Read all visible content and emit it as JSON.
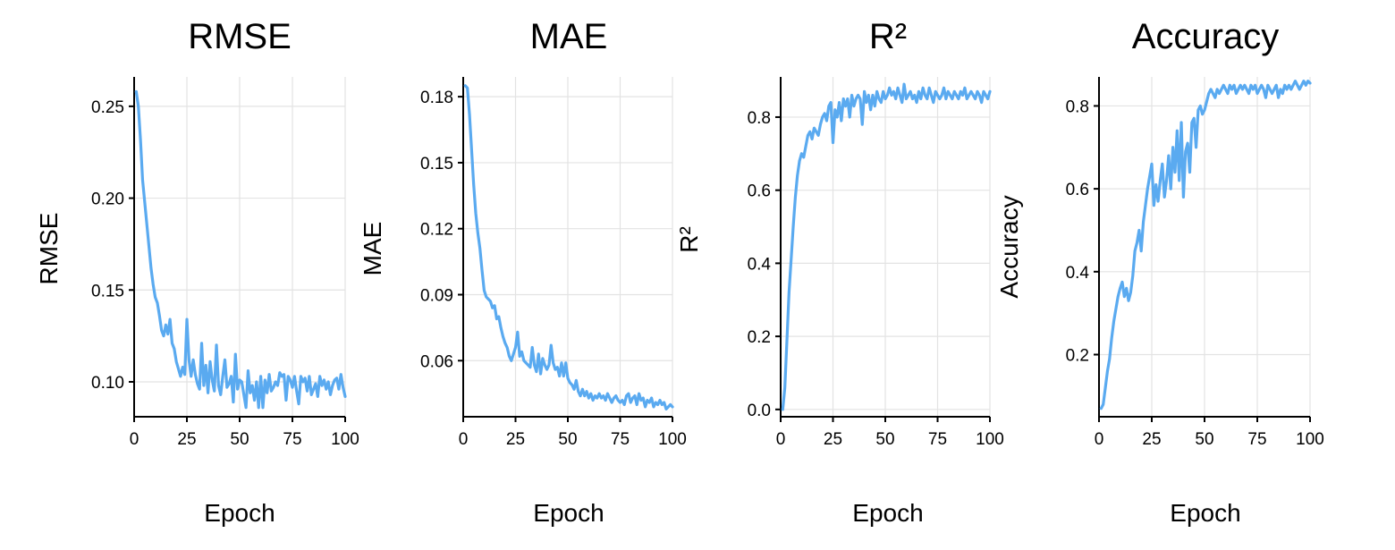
{
  "style": {
    "series_color": "#5aaaf0",
    "grid": true
  },
  "chart_data": [
    {
      "type": "line",
      "title": "RMSE",
      "xlabel": "Epoch",
      "ylabel": "RMSE",
      "xlim": [
        0,
        100
      ],
      "ylim": [
        0.081,
        0.266
      ],
      "xticks": [
        0,
        25,
        50,
        75,
        100
      ],
      "yticks": [
        0.1,
        0.15,
        0.2,
        0.25
      ],
      "ytick_labels": [
        "0.10",
        "0.15",
        "0.20",
        "0.25"
      ],
      "series": [
        {
          "x": [
            1,
            2,
            3,
            4,
            5,
            6,
            7,
            8,
            9,
            10,
            11,
            12,
            13,
            14,
            15,
            16,
            17,
            18,
            19,
            20,
            21,
            22,
            23,
            24,
            25,
            26,
            27,
            28,
            29,
            30,
            31,
            32,
            33,
            34,
            35,
            36,
            37,
            38,
            39,
            40,
            41,
            42,
            43,
            44,
            45,
            46,
            47,
            48,
            49,
            50,
            51,
            52,
            53,
            54,
            55,
            56,
            57,
            58,
            59,
            60,
            61,
            62,
            63,
            64,
            65,
            66,
            67,
            68,
            69,
            70,
            71,
            72,
            73,
            74,
            75,
            76,
            77,
            78,
            79,
            80,
            81,
            82,
            83,
            84,
            85,
            86,
            87,
            88,
            89,
            90,
            91,
            92,
            93,
            94,
            95,
            96,
            97,
            98,
            99,
            100
          ],
          "values": [
            0.258,
            0.25,
            0.232,
            0.21,
            0.198,
            0.186,
            0.174,
            0.162,
            0.153,
            0.146,
            0.143,
            0.136,
            0.128,
            0.125,
            0.131,
            0.126,
            0.134,
            0.121,
            0.118,
            0.111,
            0.107,
            0.103,
            0.108,
            0.104,
            0.134,
            0.112,
            0.103,
            0.112,
            0.104,
            0.099,
            0.096,
            0.121,
            0.098,
            0.109,
            0.094,
            0.111,
            0.101,
            0.095,
            0.12,
            0.098,
            0.093,
            0.103,
            0.112,
            0.097,
            0.099,
            0.103,
            0.089,
            0.115,
            0.096,
            0.101,
            0.1,
            0.093,
            0.086,
            0.106,
            0.094,
            0.098,
            0.09,
            0.1,
            0.086,
            0.103,
            0.086,
            0.101,
            0.094,
            0.104,
            0.095,
            0.097,
            0.1,
            0.098,
            0.105,
            0.103,
            0.104,
            0.09,
            0.103,
            0.101,
            0.097,
            0.103,
            0.095,
            0.088,
            0.103,
            0.1,
            0.102,
            0.095,
            0.103,
            0.093,
            0.096,
            0.099,
            0.092,
            0.103,
            0.098,
            0.101,
            0.096,
            0.1,
            0.093,
            0.098,
            0.101,
            0.102,
            0.096,
            0.104,
            0.097,
            0.092
          ]
        }
      ]
    },
    {
      "type": "line",
      "title": "MAE",
      "xlabel": "Epoch",
      "ylabel": "MAE",
      "xlim": [
        0,
        100
      ],
      "ylim": [
        0.0345,
        0.189
      ],
      "xticks": [
        0,
        25,
        50,
        75,
        100
      ],
      "yticks": [
        0.06,
        0.09,
        0.12,
        0.15,
        0.18
      ],
      "ytick_labels": [
        "0.06",
        "0.09",
        "0.12",
        "0.15",
        "0.18"
      ],
      "series": [
        {
          "x": [
            1,
            2,
            3,
            4,
            5,
            6,
            7,
            8,
            9,
            10,
            11,
            12,
            13,
            14,
            15,
            16,
            17,
            18,
            19,
            20,
            21,
            22,
            23,
            24,
            25,
            26,
            27,
            28,
            29,
            30,
            31,
            32,
            33,
            34,
            35,
            36,
            37,
            38,
            39,
            40,
            41,
            42,
            43,
            44,
            45,
            46,
            47,
            48,
            49,
            50,
            51,
            52,
            53,
            54,
            55,
            56,
            57,
            58,
            59,
            60,
            61,
            62,
            63,
            64,
            65,
            66,
            67,
            68,
            69,
            70,
            71,
            72,
            73,
            74,
            75,
            76,
            77,
            78,
            79,
            80,
            81,
            82,
            83,
            84,
            85,
            86,
            87,
            88,
            89,
            90,
            91,
            92,
            93,
            94,
            95,
            96,
            97,
            98,
            99,
            100
          ],
          "values": [
            0.185,
            0.184,
            0.172,
            0.156,
            0.14,
            0.127,
            0.118,
            0.111,
            0.101,
            0.092,
            0.089,
            0.088,
            0.087,
            0.084,
            0.085,
            0.079,
            0.08,
            0.075,
            0.071,
            0.068,
            0.066,
            0.062,
            0.06,
            0.063,
            0.066,
            0.073,
            0.062,
            0.064,
            0.06,
            0.059,
            0.058,
            0.057,
            0.066,
            0.058,
            0.055,
            0.063,
            0.054,
            0.061,
            0.058,
            0.056,
            0.058,
            0.067,
            0.059,
            0.056,
            0.057,
            0.053,
            0.059,
            0.053,
            0.059,
            0.052,
            0.05,
            0.049,
            0.047,
            0.051,
            0.046,
            0.044,
            0.047,
            0.044,
            0.046,
            0.043,
            0.045,
            0.042,
            0.044,
            0.043,
            0.045,
            0.043,
            0.044,
            0.042,
            0.045,
            0.043,
            0.041,
            0.043,
            0.044,
            0.042,
            0.041,
            0.042,
            0.04,
            0.044,
            0.045,
            0.041,
            0.043,
            0.044,
            0.04,
            0.045,
            0.042,
            0.043,
            0.039,
            0.042,
            0.041,
            0.043,
            0.039,
            0.041,
            0.04,
            0.042,
            0.04,
            0.041,
            0.038,
            0.039,
            0.04,
            0.039
          ]
        }
      ]
    },
    {
      "type": "line",
      "title": "R²",
      "xlabel": "Epoch",
      "ylabel": "R²",
      "xlim": [
        0,
        100
      ],
      "ylim": [
        -0.02,
        0.91
      ],
      "xticks": [
        0,
        25,
        50,
        75,
        100
      ],
      "yticks": [
        0.0,
        0.2,
        0.4,
        0.6,
        0.8
      ],
      "ytick_labels": [
        "0.0",
        "0.2",
        "0.4",
        "0.6",
        "0.8"
      ],
      "series": [
        {
          "x": [
            1,
            2,
            3,
            4,
            5,
            6,
            7,
            8,
            9,
            10,
            11,
            12,
            13,
            14,
            15,
            16,
            17,
            18,
            19,
            20,
            21,
            22,
            23,
            24,
            25,
            26,
            27,
            28,
            29,
            30,
            31,
            32,
            33,
            34,
            35,
            36,
            37,
            38,
            39,
            40,
            41,
            42,
            43,
            44,
            45,
            46,
            47,
            48,
            49,
            50,
            51,
            52,
            53,
            54,
            55,
            56,
            57,
            58,
            59,
            60,
            61,
            62,
            63,
            64,
            65,
            66,
            67,
            68,
            69,
            70,
            71,
            72,
            73,
            74,
            75,
            76,
            77,
            78,
            79,
            80,
            81,
            82,
            83,
            84,
            85,
            86,
            87,
            88,
            89,
            90,
            91,
            92,
            93,
            94,
            95,
            96,
            97,
            98,
            99,
            100
          ],
          "values": [
            0.0,
            0.06,
            0.19,
            0.32,
            0.41,
            0.5,
            0.58,
            0.64,
            0.68,
            0.7,
            0.69,
            0.72,
            0.75,
            0.76,
            0.74,
            0.77,
            0.76,
            0.75,
            0.78,
            0.8,
            0.81,
            0.79,
            0.83,
            0.84,
            0.73,
            0.82,
            0.8,
            0.84,
            0.79,
            0.85,
            0.83,
            0.85,
            0.8,
            0.86,
            0.83,
            0.85,
            0.86,
            0.85,
            0.78,
            0.87,
            0.84,
            0.86,
            0.82,
            0.86,
            0.83,
            0.87,
            0.85,
            0.84,
            0.87,
            0.85,
            0.86,
            0.88,
            0.86,
            0.87,
            0.85,
            0.88,
            0.86,
            0.84,
            0.89,
            0.85,
            0.86,
            0.87,
            0.85,
            0.86,
            0.84,
            0.87,
            0.85,
            0.88,
            0.86,
            0.85,
            0.88,
            0.86,
            0.84,
            0.87,
            0.86,
            0.85,
            0.86,
            0.88,
            0.85,
            0.87,
            0.86,
            0.85,
            0.87,
            0.86,
            0.85,
            0.87,
            0.86,
            0.88,
            0.85,
            0.86,
            0.87,
            0.86,
            0.85,
            0.87,
            0.86,
            0.84,
            0.87,
            0.86,
            0.85,
            0.87
          ]
        }
      ]
    },
    {
      "type": "line",
      "title": "Accuracy",
      "xlabel": "Epoch",
      "ylabel": "Accuracy",
      "xlim": [
        0,
        100
      ],
      "ylim": [
        0.05,
        0.87
      ],
      "xticks": [
        0,
        25,
        50,
        75,
        100
      ],
      "yticks": [
        0.2,
        0.4,
        0.6,
        0.8
      ],
      "ytick_labels": [
        "0.2",
        "0.4",
        "0.6",
        "0.8"
      ],
      "series": [
        {
          "x": [
            1,
            2,
            3,
            4,
            5,
            6,
            7,
            8,
            9,
            10,
            11,
            12,
            13,
            14,
            15,
            16,
            17,
            18,
            19,
            20,
            21,
            22,
            23,
            24,
            25,
            26,
            27,
            28,
            29,
            30,
            31,
            32,
            33,
            34,
            35,
            36,
            37,
            38,
            39,
            40,
            41,
            42,
            43,
            44,
            45,
            46,
            47,
            48,
            49,
            50,
            51,
            52,
            53,
            54,
            55,
            56,
            57,
            58,
            59,
            60,
            61,
            62,
            63,
            64,
            65,
            66,
            67,
            68,
            69,
            70,
            71,
            72,
            73,
            74,
            75,
            76,
            77,
            78,
            79,
            80,
            81,
            82,
            83,
            84,
            85,
            86,
            87,
            88,
            89,
            90,
            91,
            92,
            93,
            94,
            95,
            96,
            97,
            98,
            99,
            100
          ],
          "values": [
            0.07,
            0.08,
            0.12,
            0.16,
            0.19,
            0.24,
            0.28,
            0.31,
            0.34,
            0.36,
            0.375,
            0.34,
            0.36,
            0.33,
            0.35,
            0.39,
            0.45,
            0.47,
            0.5,
            0.45,
            0.52,
            0.56,
            0.6,
            0.63,
            0.66,
            0.56,
            0.61,
            0.57,
            0.62,
            0.66,
            0.58,
            0.62,
            0.68,
            0.6,
            0.7,
            0.64,
            0.74,
            0.62,
            0.76,
            0.58,
            0.69,
            0.71,
            0.64,
            0.76,
            0.77,
            0.7,
            0.79,
            0.8,
            0.78,
            0.79,
            0.81,
            0.83,
            0.84,
            0.83,
            0.82,
            0.84,
            0.83,
            0.84,
            0.85,
            0.84,
            0.83,
            0.85,
            0.84,
            0.85,
            0.83,
            0.84,
            0.85,
            0.84,
            0.85,
            0.84,
            0.83,
            0.85,
            0.84,
            0.85,
            0.83,
            0.84,
            0.85,
            0.84,
            0.82,
            0.85,
            0.84,
            0.83,
            0.84,
            0.85,
            0.82,
            0.84,
            0.83,
            0.85,
            0.84,
            0.85,
            0.84,
            0.85,
            0.86,
            0.85,
            0.84,
            0.85,
            0.86,
            0.85,
            0.86,
            0.855
          ]
        }
      ]
    }
  ]
}
